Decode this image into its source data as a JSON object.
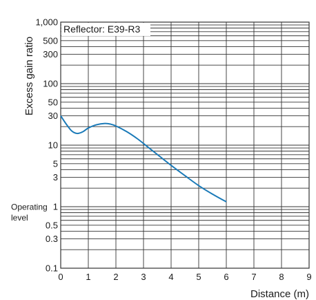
{
  "chart_data": {
    "type": "line",
    "ylabel": "Excess gain ratio",
    "xlabel": "Distance (m)",
    "annotation": "Reflector: E39-R3",
    "operating_level": {
      "value": 1,
      "label_line1": "Operating",
      "label_line2": "level"
    },
    "xlim": [
      0,
      9
    ],
    "ylim": [
      0.1,
      1000
    ],
    "y_scale": "log",
    "grid": true,
    "x_ticks": [
      "0",
      "1",
      "2",
      "3",
      "4",
      "5",
      "6",
      "7",
      "8",
      "9"
    ],
    "y_ticks": [
      {
        "value": 0.1,
        "label": "0.1"
      },
      {
        "value": 0.3,
        "label": "0.3"
      },
      {
        "value": 0.5,
        "label": "0.5"
      },
      {
        "value": 1,
        "label": "1"
      },
      {
        "value": 3,
        "label": "3"
      },
      {
        "value": 5,
        "label": "5"
      },
      {
        "value": 10,
        "label": "10"
      },
      {
        "value": 30,
        "label": "30"
      },
      {
        "value": 50,
        "label": "50"
      },
      {
        "value": 100,
        "label": "100"
      },
      {
        "value": 300,
        "label": "300"
      },
      {
        "value": 500,
        "label": "500"
      },
      {
        "value": 1000,
        "label": "1,000"
      }
    ],
    "series": [
      {
        "color": "#1a7ab8",
        "x": [
          0,
          0.2,
          0.4,
          0.6,
          0.8,
          1.0,
          1.3,
          1.6,
          1.8,
          2.0,
          2.4,
          2.8,
          3.2,
          3.6,
          4.0,
          4.5,
          5.0,
          5.5,
          6.0
        ],
        "y": [
          30,
          22,
          17,
          15.5,
          16.5,
          19,
          21.5,
          22.5,
          22,
          20.5,
          16.5,
          12.5,
          9,
          6.5,
          4.7,
          3.2,
          2.2,
          1.6,
          1.2
        ]
      }
    ]
  }
}
